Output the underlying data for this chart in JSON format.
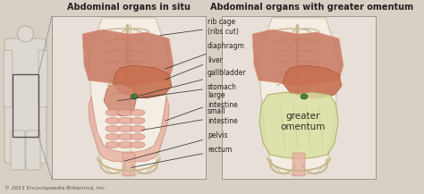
{
  "title_left": "Abdominal organs in situ",
  "title_right": "Abdominal organs with greater omentum",
  "copyright": "© 2013 Encyclopaedia Britannica, Inc.",
  "labels_left": [
    "rib cage\n(ribs cut)",
    "diaphragm",
    "liver",
    "gallbladder",
    "stomach",
    "large\nintestine",
    "small\nintestine",
    "pelvis",
    "rectum"
  ],
  "label_right": "greater\nomentum",
  "bg_color": "#d8d0c4",
  "panel_color": "#e8e0d8",
  "sil_color": "#ddd8d0",
  "bone_color": "#e8e0cc",
  "bone_edge": "#c8b890",
  "muscle_color": "#c87860",
  "muscle_light": "#e09880",
  "intestine_color": "#e8b0a0",
  "intestine_edge": "#c88878",
  "liver_color": "#c87050",
  "stomach_color": "#d08870",
  "omentum_color": "#d8dfa0",
  "omentum_edge": "#a8a860",
  "gallbladder_color": "#4a8040",
  "title_fontsize": 7.0,
  "label_fontsize": 5.5,
  "copyright_fontsize": 4.2,
  "arrow_color": "#333333",
  "text_color": "#222222"
}
